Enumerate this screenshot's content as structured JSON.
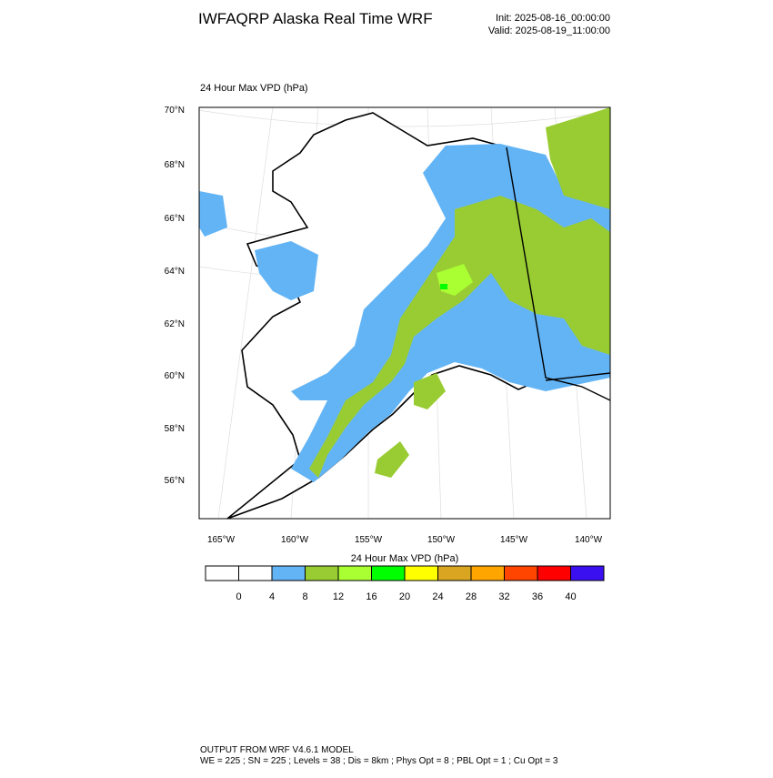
{
  "header": {
    "title": "IWFAQRP Alaska Real Time WRF",
    "init": "Init: 2025-08-16_00:00:00",
    "valid": "Valid: 2025-08-19_11:00:00"
  },
  "map": {
    "label": "24 Hour Max VPD   (hPa)",
    "lat_labels": [
      "70°N",
      "68°N",
      "66°N",
      "64°N",
      "62°N",
      "60°N",
      "58°N",
      "56°N"
    ],
    "lon_labels": [
      "165°W",
      "160°W",
      "155°W",
      "150°W",
      "145°W",
      "140°W"
    ]
  },
  "colorbar": {
    "title": "24 Hour Max VPD  (hPa)",
    "labels": [
      0,
      4,
      8,
      12,
      16,
      20,
      24,
      28,
      32,
      36,
      40
    ],
    "colors": [
      "#ffffff",
      "#ffffff",
      "#63b4f5",
      "#99cc33",
      "#aaff33",
      "#00ff00",
      "#ffff00",
      "#daa520",
      "#ffa500",
      "#ff4500",
      "#ff0000",
      "#3a10f0"
    ]
  },
  "footer": {
    "line1": "OUTPUT FROM WRF V4.6.1 MODEL",
    "line2": "WE = 225 ; SN = 225 ; Levels = 38 ; Dis = 8km ; Phys Opt = 8 ; PBL Opt = 1 ; Cu Opt = 3"
  }
}
